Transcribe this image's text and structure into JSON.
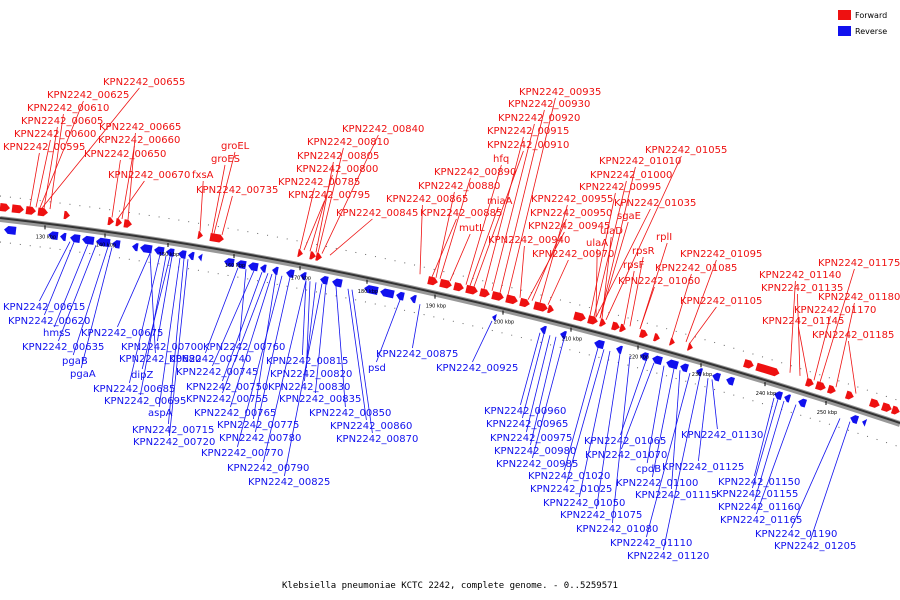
{
  "caption": "Klebsiella pneumoniae KCTC 2242, complete genome. - 0..5259571",
  "legend": {
    "forward": "Forward",
    "reverse": "Reverse"
  },
  "colors": {
    "forward": "#ee1111",
    "reverse": "#1111ee",
    "backbone": "#999999"
  },
  "ticks": [
    "130 kbp",
    "140 kbp",
    "150 kbp",
    "160 kbp",
    "170 kbp",
    "180 kbp",
    "190 kbp",
    "200 kbp",
    "210 kbp",
    "220 kbp",
    "230 kbp",
    "240 kbp",
    "250 kbp"
  ],
  "forward_labels": [
    "KPN2242_00655",
    "KPN2242_00625",
    "KPN2242_00610",
    "KPN2242_00605",
    "KPN2242_00600",
    "KPN2242_00595",
    "KPN2242_00665",
    "KPN2242_00660",
    "KPN2242_00650",
    "KPN2242_00670",
    "fxsA",
    "groEL",
    "groES",
    "KPN2242_00735",
    "KPN2242_00840",
    "KPN2242_00810",
    "KPN2242_00805",
    "KPN2242_00800",
    "KPN2242_00785",
    "KPN2242_00795",
    "KPN2242_00845",
    "KPN2242_00935",
    "KPN2242_00930",
    "KPN2242_00920",
    "KPN2242_00915",
    "KPN2242_00910",
    "hfq",
    "KPN2242_00890",
    "KPN2242_00880",
    "KPN2242_00865",
    "miaA",
    "KPN2242_00885",
    "mutL",
    "KPN2242_00955",
    "KPN2242_00950",
    "KPN2242_00945",
    "KPN2242_00940",
    "KPN2242_00970",
    "KPN2242_01055",
    "KPN2242_01010",
    "KPN2242_01000",
    "KPN2242_00995",
    "KPN2242_01035",
    "sgaE",
    "ulaD",
    "ulaA",
    "rplI",
    "rpsR",
    "rpsF",
    "KPN2242_01060",
    "KPN2242_01095",
    "KPN2242_01085",
    "KPN2242_01105",
    "KPN2242_01175",
    "KPN2242_01140",
    "KPN2242_01135",
    "KPN2242_01180",
    "KPN2242_01170",
    "KPN2242_01145",
    "KPN2242_01185"
  ],
  "reverse_labels": [
    "KPN2242_00615",
    "KPN2242_00620",
    "hmsS",
    "KPN2242_00675",
    "KPN2242_00635",
    "pgaB",
    "pgaA",
    "KPN2242_00700",
    "KPN2242_00680",
    "KPN2242_00760",
    "KPN2242_00740",
    "dipZ",
    "KPN2242_00745",
    "KPN2242_00685",
    "KPN2242_00750",
    "KPN2242_00695",
    "KPN2242_00755",
    "aspA",
    "KPN2242_00765",
    "KPN2242_00715",
    "KPN2242_00720",
    "KPN2242_00775",
    "KPN2242_00780",
    "KPN2242_00770",
    "KPN2242_00790",
    "KPN2242_00825",
    "KPN2242_00815",
    "KPN2242_00820",
    "KPN2242_00830",
    "KPN2242_00835",
    "KPN2242_00850",
    "KPN2242_00860",
    "KPN2242_00870",
    "KPN2242_00875",
    "psd",
    "KPN2242_00925",
    "KPN2242_00960",
    "KPN2242_00965",
    "KPN2242_00975",
    "KPN2242_00980",
    "KPN2242_00985",
    "KPN2242_01020",
    "KPN2242_01025",
    "KPN2242_01050",
    "KPN2242_01075",
    "KPN2242_01080",
    "KPN2242_01065",
    "KPN2242_01070",
    "cpdB",
    "KPN2242_01100",
    "KPN2242_01115",
    "KPN2242_01110",
    "KPN2242_01120",
    "KPN2242_01130",
    "KPN2242_01125",
    "KPN2242_01150",
    "KPN2242_01155",
    "KPN2242_01160",
    "KPN2242_01165",
    "KPN2242_01190",
    "KPN2242_01205"
  ]
}
